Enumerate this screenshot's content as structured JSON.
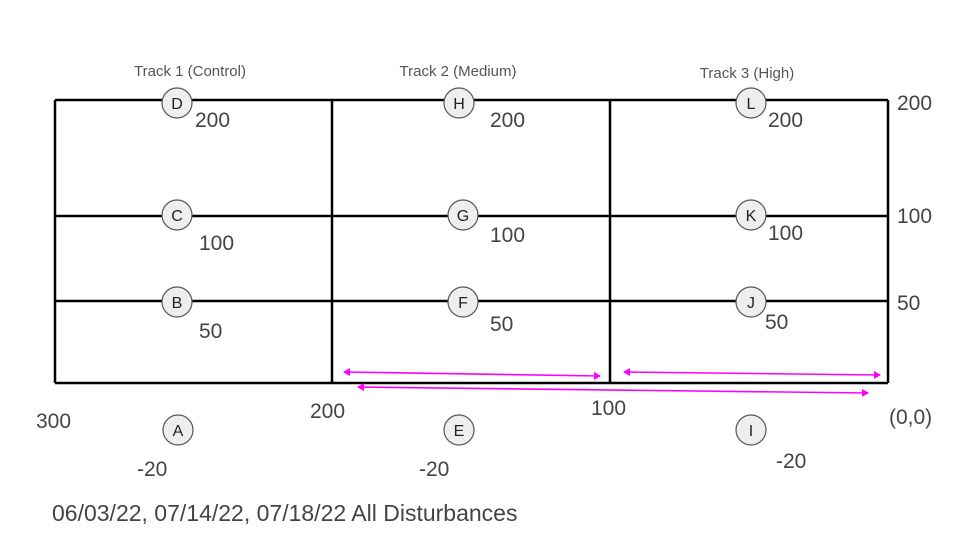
{
  "tracks": [
    {
      "title": "Track 1 (Control)"
    },
    {
      "title": "Track 2 (Medium)"
    },
    {
      "title": "Track 3 (High)"
    }
  ],
  "right_axis_labels": [
    "200",
    "100",
    "50"
  ],
  "bottom_axis_labels": [
    "300",
    "200",
    "100",
    "(0,0)"
  ],
  "nodes": [
    {
      "id": "A",
      "value": "-20"
    },
    {
      "id": "B",
      "value": "50"
    },
    {
      "id": "C",
      "value": "100"
    },
    {
      "id": "D",
      "value": "200"
    },
    {
      "id": "E",
      "value": "-20"
    },
    {
      "id": "F",
      "value": "50"
    },
    {
      "id": "G",
      "value": "100"
    },
    {
      "id": "H",
      "value": "200"
    },
    {
      "id": "I",
      "value": "-20"
    },
    {
      "id": "J",
      "value": "50"
    },
    {
      "id": "K",
      "value": "100"
    },
    {
      "id": "L",
      "value": "200"
    }
  ],
  "caption": "06/03/22, 07/14/22, 07/18/22 All Disturbances",
  "colors": {
    "grid": "#000000",
    "arrow": "#ff00ff",
    "text": "#444444",
    "node_fill": "#eeeeee"
  }
}
